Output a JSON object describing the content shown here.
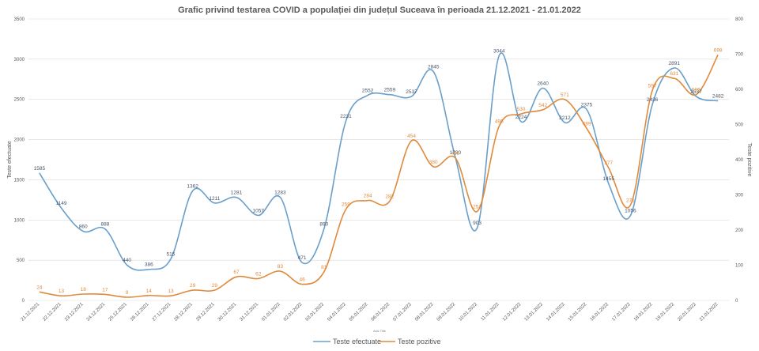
{
  "chart_data": {
    "type": "line",
    "title": "Grafic privind testarea COVID a populației din județul Suceava în perioada 21.12.2021  - 21.01.2022",
    "xlabel": "Axis Title",
    "ylabel": "Teste efectuate",
    "y2label": "Teste pozitive",
    "ylim": [
      0,
      3500
    ],
    "y2lim": [
      0,
      800
    ],
    "yticks": [
      "0",
      "500",
      "1000",
      "1500",
      "2000",
      "2500",
      "3000",
      "3500"
    ],
    "y2ticks": [
      "0",
      "100",
      "200",
      "300",
      "400",
      "500",
      "600",
      "700",
      "800"
    ],
    "grid": true,
    "legend": "bottom",
    "categories": [
      "21.12.2021",
      "22.12.2021",
      "23.12.2021",
      "24.12.2021",
      "25.12.2021",
      "26.12.2021",
      "27.12.2021",
      "28.12.2021",
      "29.12.2021",
      "30.12.2021",
      "31.12.2021",
      "01.01.2022",
      "02.01.2022",
      "03.01.2022",
      "04.01.2022",
      "05.01.2022",
      "06.01.2022",
      "07.01.2022",
      "08.01.2022",
      "09.01.2022",
      "10.01.2022",
      "11.01.2022",
      "12.01.2022",
      "13.01.2022",
      "14.01.2022",
      "15.01.2022",
      "16.01.2022",
      "17.01.2022",
      "18.01.2022",
      "19.01.2022",
      "20.01.2022",
      "21.01.2022"
    ],
    "series": [
      {
        "name": "Teste efectuate",
        "axis": "left",
        "color": "#6a9fca",
        "values": [
          1585,
          1149,
          860,
          888,
          440,
          386,
          515,
          1362,
          1211,
          1281,
          1057,
          1283,
          471,
          890,
          2231,
          2552,
          2559,
          2537,
          2845,
          1780,
          903,
          3044,
          2224,
          2640,
          2212,
          2375,
          1455,
          1056,
          2436,
          2891,
          2537,
          2482
        ]
      },
      {
        "name": "Teste pozitive",
        "axis": "right",
        "color": "#e08a3c",
        "values": [
          24,
          13,
          18,
          17,
          9,
          14,
          13,
          29,
          29,
          67,
          62,
          83,
          46,
          81,
          259,
          284,
          282,
          454,
          380,
          405,
          253,
          495,
          530,
          542,
          571,
          489,
          377,
          271,
          597,
          631,
          585,
          698
        ]
      }
    ]
  }
}
